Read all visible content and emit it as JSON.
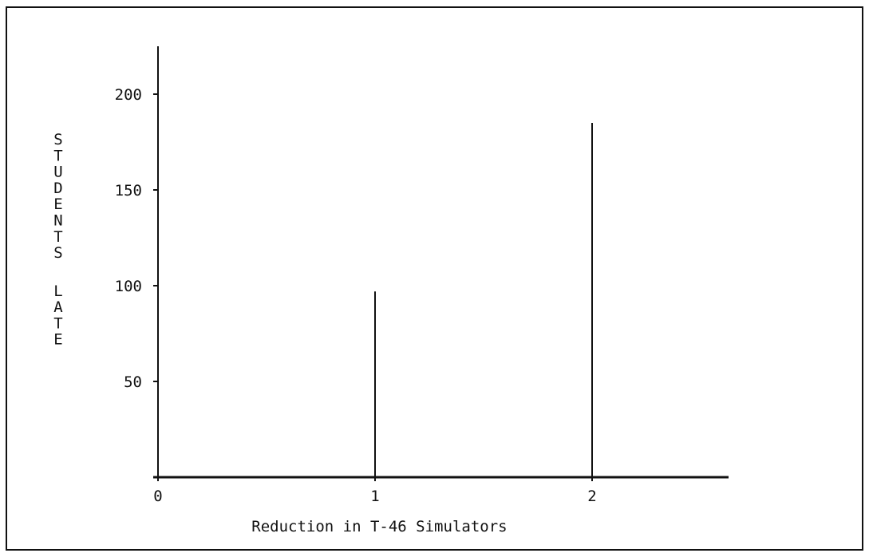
{
  "chart_data": {
    "type": "bar",
    "title": "",
    "xlabel": "Reduction in T-46 Simulators",
    "ylabel": "STUDENTS LATE",
    "xlim": [
      0,
      2.6
    ],
    "ylim": [
      0,
      225
    ],
    "x_ticks": [
      0,
      1,
      2
    ],
    "y_ticks": [
      50,
      100,
      150,
      200
    ],
    "grid": false,
    "legend": "none",
    "x": [
      1,
      2
    ],
    "values": [
      97,
      185
    ],
    "colors": {
      "ink": "#111111",
      "background": "#ffffff"
    }
  }
}
